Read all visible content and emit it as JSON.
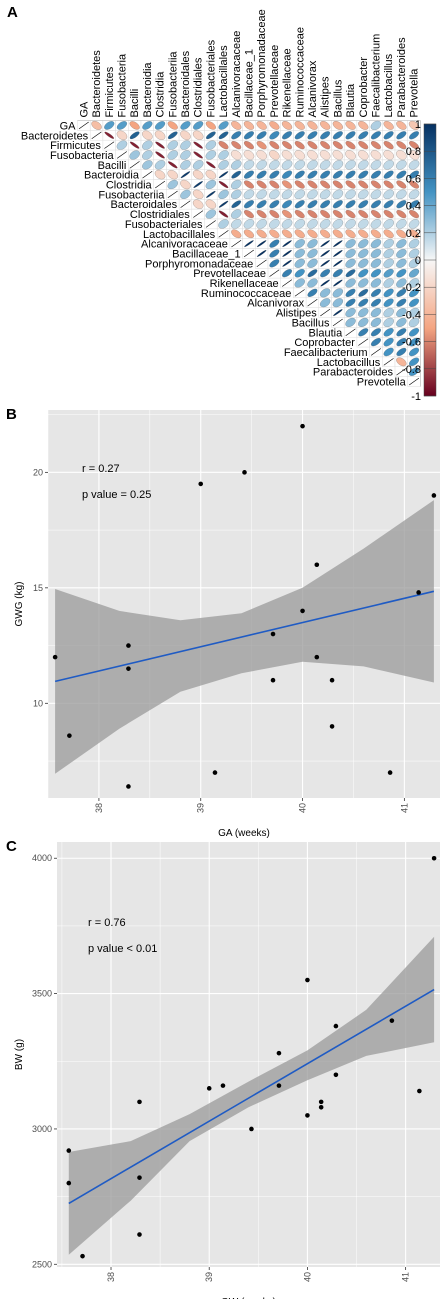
{
  "panel_labels": [
    "A",
    "B",
    "C"
  ],
  "colors": {
    "positive_strong": "#053061",
    "positive_mid": "#4393c3",
    "neutral": "#f7f7f7",
    "negative_mid": "#f4a582",
    "negative_strong": "#67001f",
    "fit_line": "#1f5bc4",
    "ci_band": "#9a9a9a",
    "plot_bg": "#e6e6e6",
    "grid": "#ffffff"
  },
  "chart_data": [
    {
      "type": "heatmap",
      "style": "correlation-ellipse-upper-triangle",
      "labels": [
        "GA",
        "Bacteroidetes",
        "Firmicutes",
        "Fusobacteria",
        "Bacilli",
        "Bacteroidia",
        "Clostridia",
        "Fusobacteriia",
        "Bacteroidales",
        "Clostridiales",
        "Fusobacteriales",
        "Lactobacillales",
        "Alcanivoracaceae",
        "Bacillaceae_1",
        "Porphyromonadaceae",
        "Prevotellaceae",
        "Rikenellaceae",
        "Ruminococcaceae",
        "Alcanivorax",
        "Alistipes",
        "Bacillus",
        "Blautia",
        "Coprobacter",
        "Faecalibacterium",
        "Lactobacillus",
        "Parabacteroides",
        "Prevotella"
      ],
      "colorbar_ticks": [
        "1",
        "0.8",
        "0.6",
        "0.4",
        "0.2",
        "0",
        "-0.2",
        "-0.4",
        "-0.6",
        "-0.8",
        "-1"
      ],
      "colorbar_range": [
        -1,
        1
      ],
      "row_correlations": [
        [
          -0.35,
          0.45,
          0.45,
          -0.5,
          0.45,
          0.45,
          -0.5,
          0.45,
          0.45,
          -0.5,
          0.45,
          -0.4,
          -0.4,
          -0.4,
          -0.45,
          -0.4,
          -0.4,
          -0.4,
          -0.4,
          -0.4,
          -0.4,
          -0.4,
          0.2,
          -0.4,
          -0.4,
          -0.3
        ],
        [
          -0.9,
          -0.2,
          0.75,
          -0.2,
          -0.2,
          0.75,
          -0.2,
          -0.2,
          0.75,
          0.75,
          0.6,
          0.6,
          0.6,
          0.55,
          0.6,
          0.6,
          0.6,
          0.6,
          0.6,
          0.6,
          0.6,
          0.6,
          0.6,
          0.6,
          0.6
        ],
        [
          0.2,
          -0.9,
          0.2,
          -0.9,
          0.2,
          0.2,
          -0.9,
          0.2,
          -0.6,
          -0.6,
          -0.6,
          -0.55,
          -0.6,
          -0.6,
          -0.6,
          -0.6,
          -0.6,
          -0.6,
          -0.6,
          -0.6,
          -0.6,
          -0.6,
          -0.6,
          -0.6
        ],
        [
          0.25,
          0.2,
          -0.9,
          0.2,
          0.2,
          -0.9,
          0.2,
          0.2,
          -0.15,
          -0.15,
          -0.15,
          -0.2,
          -0.15,
          -0.15,
          -0.15,
          -0.15,
          -0.15,
          -0.15,
          -0.15,
          -0.15,
          -0.15,
          -0.15,
          -0.15
        ],
        [
          0.25,
          0.2,
          -0.9,
          0.2,
          0.2,
          -0.9,
          0.2,
          0.2,
          0.15,
          0.15,
          0.15,
          0.15,
          0.15,
          0.15,
          0.15,
          0.15,
          0.15,
          0.15,
          0.15,
          0.15,
          0.15,
          0.15
        ],
        [
          -0.2,
          -0.2,
          0.95,
          -0.2,
          -0.2,
          0.95,
          0.75,
          0.6,
          0.6,
          0.6,
          0.55,
          0.6,
          0.6,
          0.6,
          0.6,
          0.6,
          0.6,
          0.6,
          0.6,
          0.6,
          0.6
        ],
        [
          0.25,
          -0.2,
          0.95,
          0.25,
          -0.9,
          0.2,
          -0.6,
          -0.6,
          -0.6,
          -0.55,
          -0.6,
          -0.6,
          -0.6,
          -0.6,
          -0.6,
          -0.6,
          -0.6,
          -0.6,
          -0.6,
          -0.6
        ],
        [
          0.25,
          -0.2,
          0.95,
          0.25,
          0.2,
          0.15,
          0.15,
          0.15,
          0.15,
          0.15,
          0.15,
          0.15,
          0.15,
          0.15,
          0.15,
          0.15,
          0.15,
          0.15,
          0.15
        ],
        [
          -0.2,
          -0.2,
          0.95,
          0.75,
          0.6,
          0.6,
          0.6,
          0.55,
          0.6,
          0.6,
          0.6,
          0.6,
          0.6,
          0.6,
          0.6,
          0.6,
          0.6,
          0.6
        ],
        [
          0.25,
          -0.9,
          0.2,
          -0.6,
          -0.6,
          -0.6,
          -0.55,
          -0.6,
          -0.6,
          -0.6,
          -0.6,
          -0.6,
          -0.6,
          -0.6,
          -0.6,
          -0.6,
          -0.6
        ],
        [
          0.2,
          0.15,
          0.15,
          0.15,
          0.15,
          0.15,
          0.15,
          0.15,
          0.15,
          0.15,
          0.15,
          0.15,
          0.15,
          0.15,
          0.15,
          0.15
        ],
        [
          -0.45,
          -0.45,
          -0.45,
          -0.45,
          -0.45,
          -0.45,
          -0.45,
          -0.45,
          -0.45,
          -0.45,
          -0.45,
          -0.45,
          -0.45,
          -0.45,
          -0.45
        ],
        [
          1.0,
          1.0,
          0.6,
          1.0,
          0.3,
          0.3,
          1.0,
          1.0,
          0.3,
          0.3,
          0.3,
          0.2,
          0.3,
          0.2
        ],
        [
          1.0,
          0.6,
          1.0,
          0.3,
          0.3,
          1.0,
          1.0,
          0.3,
          0.3,
          0.3,
          0.2,
          0.3,
          0.2
        ],
        [
          0.6,
          1.0,
          0.3,
          0.3,
          1.0,
          1.0,
          0.3,
          0.3,
          0.3,
          0.2,
          0.3,
          0.2
        ],
        [
          0.6,
          0.5,
          0.7,
          0.6,
          0.6,
          0.7,
          0.5,
          0.5,
          0.45,
          0.5,
          0.4
        ],
        [
          0.3,
          0.3,
          1.0,
          1.0,
          0.3,
          0.3,
          0.3,
          0.2,
          0.3,
          0.2
        ],
        [
          0.6,
          0.3,
          0.3,
          0.6,
          0.7,
          0.6,
          0.5,
          0.6,
          0.5
        ],
        [
          0.3,
          0.3,
          0.6,
          0.6,
          0.6,
          0.5,
          0.6,
          0.5
        ],
        [
          1.0,
          0.3,
          0.3,
          0.3,
          0.2,
          0.3,
          0.2
        ],
        [
          0.3,
          0.3,
          0.3,
          0.2,
          0.3,
          0.2
        ],
        [
          0.6,
          0.6,
          0.5,
          0.6,
          0.5
        ],
        [
          0.6,
          0.5,
          0.6,
          0.5
        ],
        [
          0.5,
          0.6,
          0.5
        ],
        [
          -0.4,
          0.5
        ],
        [
          0.5
        ]
      ]
    },
    {
      "type": "scatter",
      "xlabel": "GA (weeks)",
      "ylabel": "GWG (kg)",
      "x_ticks": [
        38,
        39,
        40,
        41
      ],
      "y_ticks": [
        10,
        15,
        20
      ],
      "xlim": [
        37.5,
        41.35
      ],
      "ylim": [
        5.9,
        22.7
      ],
      "points": [
        [
          37.57,
          12
        ],
        [
          37.71,
          8.6
        ],
        [
          38.29,
          12.5
        ],
        [
          38.29,
          11.5
        ],
        [
          38.29,
          6.4
        ],
        [
          39.0,
          19.5
        ],
        [
          39.14,
          7.0
        ],
        [
          39.43,
          20.0
        ],
        [
          39.71,
          13.0
        ],
        [
          39.71,
          11.0
        ],
        [
          40.0,
          22.0
        ],
        [
          40.0,
          14.0
        ],
        [
          40.14,
          16.0
        ],
        [
          40.14,
          12.0
        ],
        [
          40.29,
          11.0
        ],
        [
          40.29,
          9.0
        ],
        [
          40.86,
          7.0
        ],
        [
          41.14,
          14.8
        ],
        [
          41.29,
          19.0
        ]
      ],
      "fit_line": {
        "x": [
          37.57,
          41.29
        ],
        "y": [
          10.95,
          14.85
        ]
      },
      "ci_band": {
        "x": [
          37.57,
          38.2,
          38.8,
          39.4,
          40.0,
          40.6,
          41.29
        ],
        "upper": [
          14.95,
          14.0,
          13.6,
          13.9,
          15.0,
          16.7,
          18.8
        ],
        "lower": [
          6.95,
          8.9,
          10.5,
          11.3,
          11.8,
          11.6,
          10.9
        ]
      },
      "annotations": [
        "r = 0.27",
        "p value = 0.25"
      ]
    },
    {
      "type": "scatter",
      "xlabel": "GW (weeks)",
      "ylabel": "BW (g)",
      "x_ticks": [
        38,
        39,
        40,
        41
      ],
      "y_ticks": [
        2500,
        3000,
        3500,
        4000
      ],
      "xlim": [
        37.45,
        41.35
      ],
      "ylim": [
        2490,
        4060
      ],
      "points": [
        [
          37.57,
          2920
        ],
        [
          37.57,
          2800
        ],
        [
          37.71,
          2530
        ],
        [
          38.29,
          3100
        ],
        [
          38.29,
          2820
        ],
        [
          38.29,
          2610
        ],
        [
          39.0,
          3150
        ],
        [
          39.14,
          3160
        ],
        [
          39.43,
          3000
        ],
        [
          39.71,
          3280
        ],
        [
          39.71,
          3160
        ],
        [
          40.0,
          3550
        ],
        [
          40.0,
          3050
        ],
        [
          40.14,
          3100
        ],
        [
          40.14,
          3080
        ],
        [
          40.29,
          3380
        ],
        [
          40.29,
          3200
        ],
        [
          40.86,
          3400
        ],
        [
          41.14,
          3140
        ],
        [
          41.29,
          4000
        ]
      ],
      "fit_line": {
        "x": [
          37.57,
          41.29
        ],
        "y": [
          2725,
          3515
        ]
      },
      "ci_band": {
        "x": [
          37.57,
          38.2,
          38.8,
          39.4,
          40.0,
          40.6,
          41.29
        ],
        "upper": [
          2915,
          2955,
          3055,
          3175,
          3290,
          3440,
          3710
        ],
        "lower": [
          2535,
          2735,
          2955,
          3080,
          3180,
          3270,
          3320
        ]
      },
      "annotations": [
        "r = 0.76",
        "p value < 0.01"
      ]
    }
  ]
}
